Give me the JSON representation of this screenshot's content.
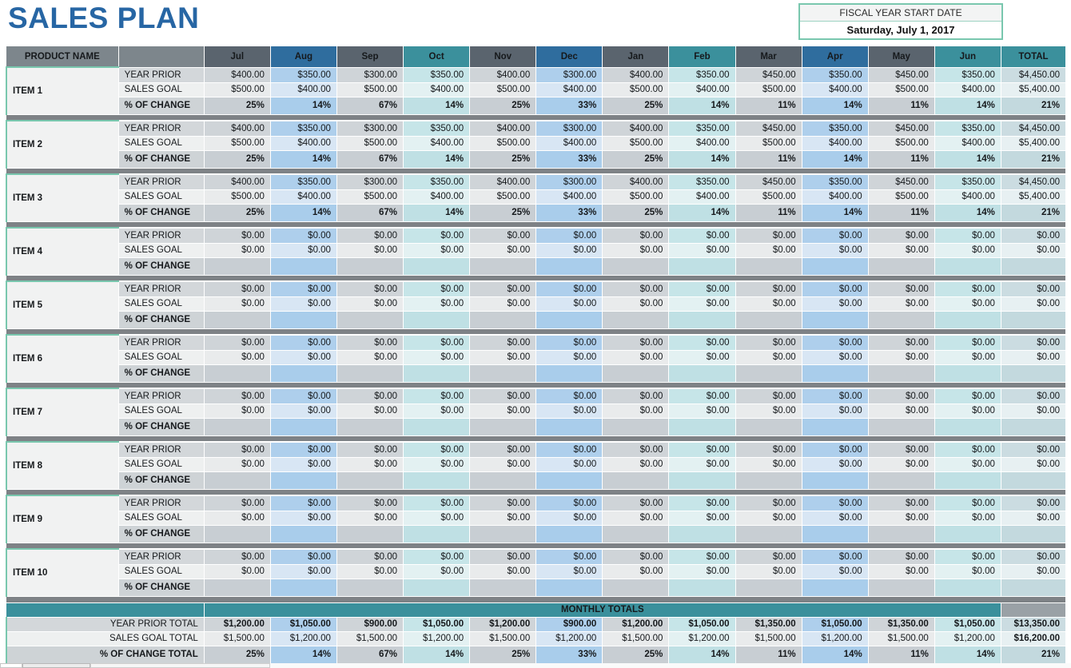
{
  "title": "SALES PLAN",
  "fiscal": {
    "label": "FISCAL YEAR START DATE",
    "value": "Saturday, July 1, 2017"
  },
  "colors": {
    "title_blue": "#2766a4",
    "mint_accent": "#79c7ae",
    "header_gray": "#7d868c",
    "header_slate": "#5a646e",
    "header_blue": "#2f6d9e",
    "header_teal": "#3b909c",
    "separator_gray": "#7e8286"
  },
  "table": {
    "product_header": "PRODUCT NAME",
    "total_header": "TOTAL",
    "months": [
      {
        "label": "Jul",
        "theme": "gray"
      },
      {
        "label": "Aug",
        "theme": "blue"
      },
      {
        "label": "Sep",
        "theme": "gray"
      },
      {
        "label": "Oct",
        "theme": "cyan"
      },
      {
        "label": "Nov",
        "theme": "gray"
      },
      {
        "label": "Dec",
        "theme": "blue"
      },
      {
        "label": "Jan",
        "theme": "gray"
      },
      {
        "label": "Feb",
        "theme": "cyan"
      },
      {
        "label": "Mar",
        "theme": "gray"
      },
      {
        "label": "Apr",
        "theme": "blue"
      },
      {
        "label": "May",
        "theme": "gray"
      },
      {
        "label": "Jun",
        "theme": "cyan"
      }
    ],
    "row_labels": {
      "year_prior": "YEAR PRIOR",
      "sales_goal": "SALES GOAL",
      "pct_change": "% OF CHANGE"
    },
    "items": [
      {
        "name": "ITEM 1",
        "year_prior": [
          "$400.00",
          "$350.00",
          "$300.00",
          "$350.00",
          "$400.00",
          "$300.00",
          "$400.00",
          "$350.00",
          "$450.00",
          "$350.00",
          "$450.00",
          "$350.00"
        ],
        "sales_goal": [
          "$500.00",
          "$400.00",
          "$500.00",
          "$400.00",
          "$500.00",
          "$400.00",
          "$500.00",
          "$400.00",
          "$500.00",
          "$400.00",
          "$500.00",
          "$400.00"
        ],
        "pct_change": [
          "25%",
          "14%",
          "67%",
          "14%",
          "25%",
          "33%",
          "25%",
          "14%",
          "11%",
          "14%",
          "11%",
          "14%"
        ],
        "total_year_prior": "$4,450.00",
        "total_sales_goal": "$5,400.00",
        "total_pct_change": "21%"
      },
      {
        "name": "ITEM 2",
        "year_prior": [
          "$400.00",
          "$350.00",
          "$300.00",
          "$350.00",
          "$400.00",
          "$300.00",
          "$400.00",
          "$350.00",
          "$450.00",
          "$350.00",
          "$450.00",
          "$350.00"
        ],
        "sales_goal": [
          "$500.00",
          "$400.00",
          "$500.00",
          "$400.00",
          "$500.00",
          "$400.00",
          "$500.00",
          "$400.00",
          "$500.00",
          "$400.00",
          "$500.00",
          "$400.00"
        ],
        "pct_change": [
          "25%",
          "14%",
          "67%",
          "14%",
          "25%",
          "33%",
          "25%",
          "14%",
          "11%",
          "14%",
          "11%",
          "14%"
        ],
        "total_year_prior": "$4,450.00",
        "total_sales_goal": "$5,400.00",
        "total_pct_change": "21%"
      },
      {
        "name": "ITEM 3",
        "year_prior": [
          "$400.00",
          "$350.00",
          "$300.00",
          "$350.00",
          "$400.00",
          "$300.00",
          "$400.00",
          "$350.00",
          "$450.00",
          "$350.00",
          "$450.00",
          "$350.00"
        ],
        "sales_goal": [
          "$500.00",
          "$400.00",
          "$500.00",
          "$400.00",
          "$500.00",
          "$400.00",
          "$500.00",
          "$400.00",
          "$500.00",
          "$400.00",
          "$500.00",
          "$400.00"
        ],
        "pct_change": [
          "25%",
          "14%",
          "67%",
          "14%",
          "25%",
          "33%",
          "25%",
          "14%",
          "11%",
          "14%",
          "11%",
          "14%"
        ],
        "total_year_prior": "$4,450.00",
        "total_sales_goal": "$5,400.00",
        "total_pct_change": "21%"
      },
      {
        "name": "ITEM 4",
        "year_prior": [
          "$0.00",
          "$0.00",
          "$0.00",
          "$0.00",
          "$0.00",
          "$0.00",
          "$0.00",
          "$0.00",
          "$0.00",
          "$0.00",
          "$0.00",
          "$0.00"
        ],
        "sales_goal": [
          "$0.00",
          "$0.00",
          "$0.00",
          "$0.00",
          "$0.00",
          "$0.00",
          "$0.00",
          "$0.00",
          "$0.00",
          "$0.00",
          "$0.00",
          "$0.00"
        ],
        "pct_change": [
          "",
          "",
          "",
          "",
          "",
          "",
          "",
          "",
          "",
          "",
          "",
          ""
        ],
        "total_year_prior": "$0.00",
        "total_sales_goal": "$0.00",
        "total_pct_change": ""
      },
      {
        "name": "ITEM 5",
        "year_prior": [
          "$0.00",
          "$0.00",
          "$0.00",
          "$0.00",
          "$0.00",
          "$0.00",
          "$0.00",
          "$0.00",
          "$0.00",
          "$0.00",
          "$0.00",
          "$0.00"
        ],
        "sales_goal": [
          "$0.00",
          "$0.00",
          "$0.00",
          "$0.00",
          "$0.00",
          "$0.00",
          "$0.00",
          "$0.00",
          "$0.00",
          "$0.00",
          "$0.00",
          "$0.00"
        ],
        "pct_change": [
          "",
          "",
          "",
          "",
          "",
          "",
          "",
          "",
          "",
          "",
          "",
          ""
        ],
        "total_year_prior": "$0.00",
        "total_sales_goal": "$0.00",
        "total_pct_change": ""
      },
      {
        "name": "ITEM 6",
        "year_prior": [
          "$0.00",
          "$0.00",
          "$0.00",
          "$0.00",
          "$0.00",
          "$0.00",
          "$0.00",
          "$0.00",
          "$0.00",
          "$0.00",
          "$0.00",
          "$0.00"
        ],
        "sales_goal": [
          "$0.00",
          "$0.00",
          "$0.00",
          "$0.00",
          "$0.00",
          "$0.00",
          "$0.00",
          "$0.00",
          "$0.00",
          "$0.00",
          "$0.00",
          "$0.00"
        ],
        "pct_change": [
          "",
          "",
          "",
          "",
          "",
          "",
          "",
          "",
          "",
          "",
          "",
          ""
        ],
        "total_year_prior": "$0.00",
        "total_sales_goal": "$0.00",
        "total_pct_change": ""
      },
      {
        "name": "ITEM 7",
        "year_prior": [
          "$0.00",
          "$0.00",
          "$0.00",
          "$0.00",
          "$0.00",
          "$0.00",
          "$0.00",
          "$0.00",
          "$0.00",
          "$0.00",
          "$0.00",
          "$0.00"
        ],
        "sales_goal": [
          "$0.00",
          "$0.00",
          "$0.00",
          "$0.00",
          "$0.00",
          "$0.00",
          "$0.00",
          "$0.00",
          "$0.00",
          "$0.00",
          "$0.00",
          "$0.00"
        ],
        "pct_change": [
          "",
          "",
          "",
          "",
          "",
          "",
          "",
          "",
          "",
          "",
          "",
          ""
        ],
        "total_year_prior": "$0.00",
        "total_sales_goal": "$0.00",
        "total_pct_change": ""
      },
      {
        "name": "ITEM 8",
        "year_prior": [
          "$0.00",
          "$0.00",
          "$0.00",
          "$0.00",
          "$0.00",
          "$0.00",
          "$0.00",
          "$0.00",
          "$0.00",
          "$0.00",
          "$0.00",
          "$0.00"
        ],
        "sales_goal": [
          "$0.00",
          "$0.00",
          "$0.00",
          "$0.00",
          "$0.00",
          "$0.00",
          "$0.00",
          "$0.00",
          "$0.00",
          "$0.00",
          "$0.00",
          "$0.00"
        ],
        "pct_change": [
          "",
          "",
          "",
          "",
          "",
          "",
          "",
          "",
          "",
          "",
          "",
          ""
        ],
        "total_year_prior": "$0.00",
        "total_sales_goal": "$0.00",
        "total_pct_change": ""
      },
      {
        "name": "ITEM 9",
        "year_prior": [
          "$0.00",
          "$0.00",
          "$0.00",
          "$0.00",
          "$0.00",
          "$0.00",
          "$0.00",
          "$0.00",
          "$0.00",
          "$0.00",
          "$0.00",
          "$0.00"
        ],
        "sales_goal": [
          "$0.00",
          "$0.00",
          "$0.00",
          "$0.00",
          "$0.00",
          "$0.00",
          "$0.00",
          "$0.00",
          "$0.00",
          "$0.00",
          "$0.00",
          "$0.00"
        ],
        "pct_change": [
          "",
          "",
          "",
          "",
          "",
          "",
          "",
          "",
          "",
          "",
          "",
          ""
        ],
        "total_year_prior": "$0.00",
        "total_sales_goal": "$0.00",
        "total_pct_change": ""
      },
      {
        "name": "ITEM 10",
        "year_prior": [
          "$0.00",
          "$0.00",
          "$0.00",
          "$0.00",
          "$0.00",
          "$0.00",
          "$0.00",
          "$0.00",
          "$0.00",
          "$0.00",
          "$0.00",
          "$0.00"
        ],
        "sales_goal": [
          "$0.00",
          "$0.00",
          "$0.00",
          "$0.00",
          "$0.00",
          "$0.00",
          "$0.00",
          "$0.00",
          "$0.00",
          "$0.00",
          "$0.00",
          "$0.00"
        ],
        "pct_change": [
          "",
          "",
          "",
          "",
          "",
          "",
          "",
          "",
          "",
          "",
          "",
          ""
        ],
        "total_year_prior": "$0.00",
        "total_sales_goal": "$0.00",
        "total_pct_change": ""
      }
    ],
    "monthly_totals": {
      "header": "MONTHLY TOTALS",
      "rows": [
        {
          "key": "year_prior",
          "label": "YEAR PRIOR TOTAL",
          "values": [
            "$1,200.00",
            "$1,050.00",
            "$900.00",
            "$1,050.00",
            "$1,200.00",
            "$900.00",
            "$1,200.00",
            "$1,050.00",
            "$1,350.00",
            "$1,050.00",
            "$1,350.00",
            "$1,050.00"
          ],
          "total": "$13,350.00"
        },
        {
          "key": "sales_goal",
          "label": "SALES GOAL TOTAL",
          "values": [
            "$1,500.00",
            "$1,200.00",
            "$1,500.00",
            "$1,200.00",
            "$1,500.00",
            "$1,200.00",
            "$1,500.00",
            "$1,200.00",
            "$1,500.00",
            "$1,200.00",
            "$1,500.00",
            "$1,200.00"
          ],
          "total": "$16,200.00"
        },
        {
          "key": "pct_change",
          "label": "% OF CHANGE TOTAL",
          "values": [
            "25%",
            "14%",
            "67%",
            "14%",
            "25%",
            "33%",
            "25%",
            "14%",
            "11%",
            "14%",
            "11%",
            "14%"
          ],
          "total": "21%"
        }
      ]
    }
  }
}
